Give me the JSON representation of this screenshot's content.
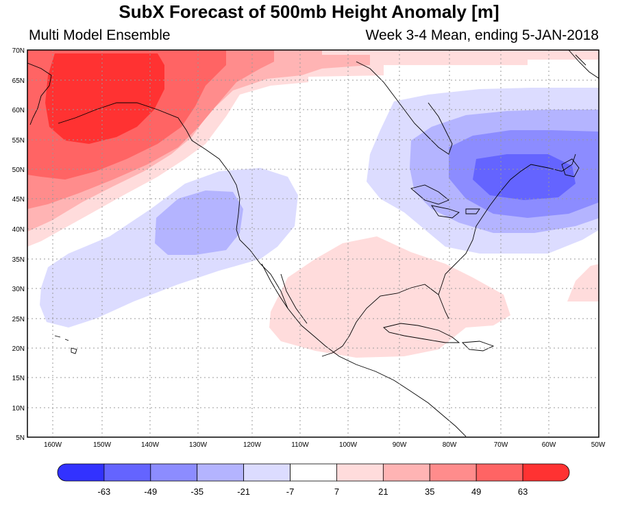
{
  "header": {
    "title": "SubX Forecast of 500mb Height Anomaly [m]",
    "subtitle_left": "Multi Model Ensemble",
    "subtitle_right": "Week 3-4 Mean, ending 5-JAN-2018"
  },
  "axes": {
    "lat_labels": [
      "70N",
      "65N",
      "60N",
      "55N",
      "50N",
      "45N",
      "40N",
      "35N",
      "30N",
      "25N",
      "20N",
      "15N",
      "10N",
      "5N"
    ],
    "lon_labels": [
      "160W",
      "150W",
      "140W",
      "130W",
      "120W",
      "110W",
      "100W",
      "90W",
      "80W",
      "70W",
      "60W",
      "50W"
    ]
  },
  "colorbar": {
    "labels": [
      "-63",
      "-49",
      "-35",
      "-21",
      "-7",
      "7",
      "21",
      "35",
      "49",
      "63"
    ],
    "colors": [
      "#3232ff",
      "#6464ff",
      "#8c8cff",
      "#b4b4ff",
      "#dcdcff",
      "#ffffff",
      "#ffdcdc",
      "#ffb4b4",
      "#ff8c8c",
      "#ff6464",
      "#ff3232"
    ]
  },
  "map": {
    "region": "North America and North Pacific",
    "grid": true,
    "features": [
      {
        "name": "Alaska / Gulf of Alaska positive anomaly",
        "max_level": "63"
      },
      {
        "name": "Eastern Canada / Labrador negative anomaly",
        "min_level": "-49"
      },
      {
        "name": "Northeast Pacific negative anomaly",
        "min_level": "-21"
      },
      {
        "name": "Gulf of Mexico / Caribbean positive anomaly",
        "max_level": "7"
      }
    ]
  }
}
